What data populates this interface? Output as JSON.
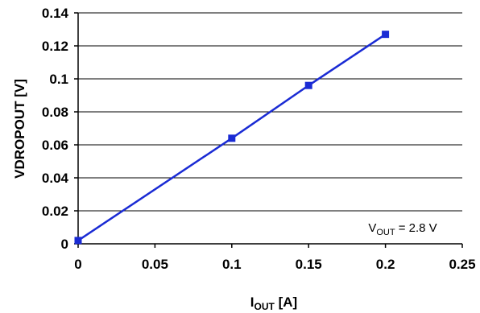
{
  "chart_data": {
    "type": "line",
    "series": [
      {
        "x": [
          0,
          0.1,
          0.15,
          0.2
        ],
        "values": [
          0.002,
          0.064,
          0.096,
          0.127
        ],
        "color": "#1a2bd4",
        "marker": "square"
      }
    ],
    "xlim": [
      0,
      0.25
    ],
    "ylim": [
      0,
      0.14
    ],
    "xticks": [
      0,
      0.05,
      0.1,
      0.15,
      0.2,
      0.25
    ],
    "xtick_labels": [
      "0",
      "0.05",
      "0.1",
      "0.15",
      "0.2",
      "0.25"
    ],
    "yticks": [
      0,
      0.02,
      0.04,
      0.06,
      0.08,
      0.1,
      0.12,
      0.14
    ],
    "ytick_labels": [
      "0",
      "0.02",
      "0.04",
      "0.06",
      "0.08",
      "0.1",
      "0.12",
      "0.14"
    ],
    "xlabel": {
      "main": "I",
      "sub": "OUT",
      "rest": " [A]"
    },
    "ylabel": "VDROPOUT [V]",
    "annotation": {
      "main": "V",
      "sub": "OUT",
      "rest": " = 2.8 V"
    },
    "grid": "horizontal",
    "legend": "none"
  }
}
